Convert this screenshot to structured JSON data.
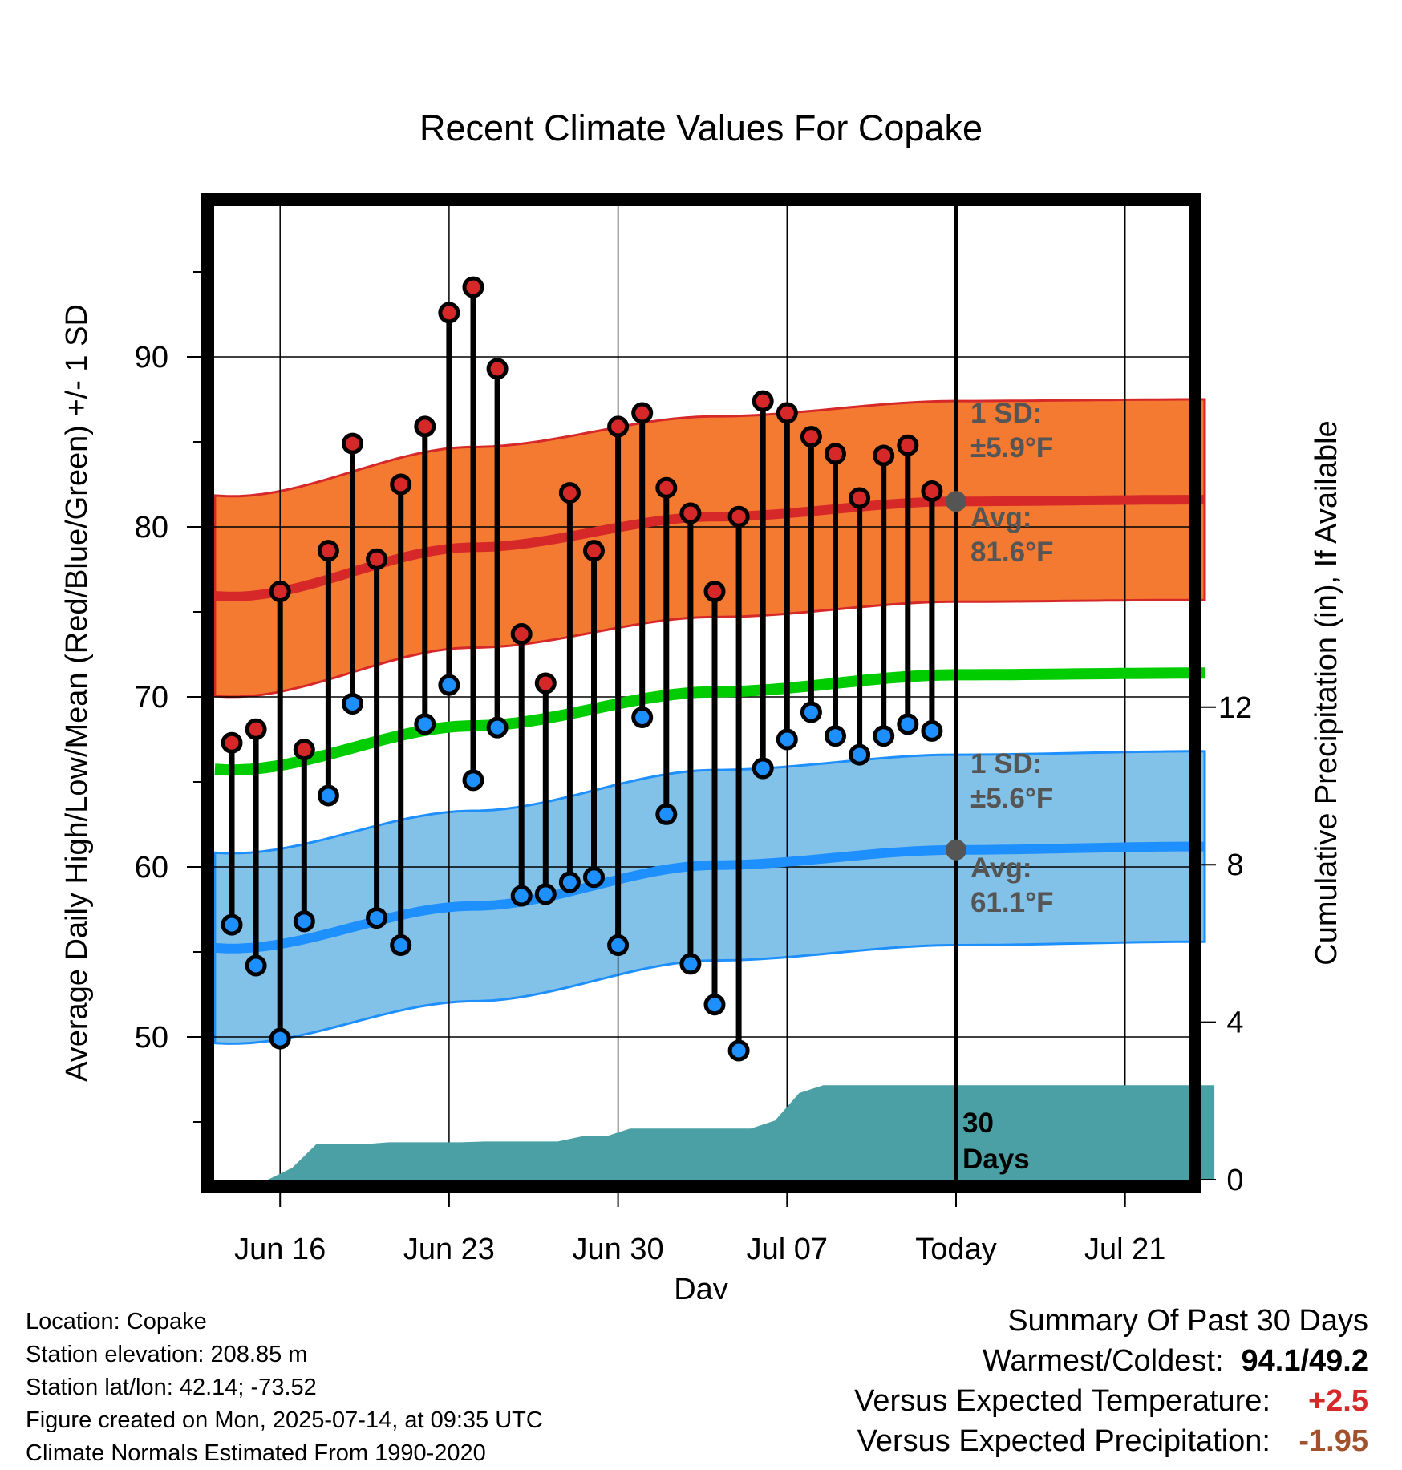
{
  "chart_data": {
    "type": "line",
    "title": "Recent Climate Values For Copake",
    "xlabel": "Day",
    "ylabel": "Average Daily High/Low/Mean (Red/Blue/Green) +/- 1 SD",
    "ylabel_right": "Cumulative Precipitation (in), If Available",
    "x_tick_labels": [
      "Jun 16",
      "Jun 23",
      "Jun 30",
      "Jul 07",
      "Today",
      "Jul 21"
    ],
    "y_ticks": [
      50,
      60,
      70,
      80,
      90
    ],
    "y2_ticks": [
      0,
      4,
      8,
      12
    ],
    "ylim": [
      40,
      98
    ],
    "y2lim": [
      0,
      26.4
    ],
    "grid": true,
    "daily_high": [
      67.3,
      68.1,
      76.2,
      66.9,
      78.6,
      84.9,
      78.1,
      82.5,
      85.9,
      92.6,
      94.1,
      89.3,
      73.7,
      70.8,
      82.0,
      78.6,
      85.9,
      86.7,
      82.3,
      80.8,
      76.2,
      80.6,
      87.4,
      86.7,
      85.3,
      84.3,
      81.7,
      84.2,
      84.8,
      82.1
    ],
    "daily_low": [
      56.6,
      54.2,
      49.9,
      56.8,
      64.2,
      69.6,
      57.0,
      55.4,
      68.4,
      70.7,
      65.1,
      68.2,
      58.3,
      58.4,
      59.1,
      59.4,
      55.4,
      68.8,
      63.1,
      54.3,
      51.9,
      49.2,
      65.8,
      67.5,
      69.1,
      67.7,
      66.6,
      67.7,
      68.4,
      68.0
    ],
    "normal_high": {
      "x": [
        "Jun 13",
        "Jun 23",
        "Jul 03",
        "Jul 13",
        "Jul 23"
      ],
      "values": [
        75.9,
        78.8,
        80.6,
        81.5,
        81.6
      ]
    },
    "normal_high_sd": 5.9,
    "normal_low": {
      "x": [
        "Jun 13",
        "Jun 23",
        "Jul 03",
        "Jul 13",
        "Jul 23"
      ],
      "values": [
        55.2,
        57.7,
        60.1,
        61.0,
        61.2
      ]
    },
    "normal_low_sd": 5.6,
    "normal_mean": {
      "x": [
        "Jun 13",
        "Jun 23",
        "Jul 03",
        "Jul 13",
        "Jul 23"
      ],
      "values": [
        65.7,
        68.3,
        70.3,
        71.3,
        71.4
      ]
    },
    "cumulative_precip": [
      0.0,
      0.0,
      0.3,
      0.9,
      0.9,
      0.9,
      0.95,
      0.95,
      0.95,
      0.95,
      0.97,
      0.97,
      0.97,
      0.97,
      1.1,
      1.1,
      1.3,
      1.3,
      1.3,
      1.3,
      1.3,
      1.3,
      1.5,
      2.2,
      2.4,
      2.4,
      2.4,
      2.4,
      2.4,
      2.4
    ],
    "annotations": {
      "high_sd_label": "1 SD:",
      "high_sd_value": "±5.9°F",
      "high_avg_label": "Avg:",
      "high_avg_value": "81.6°F",
      "low_sd_label": "1 SD:",
      "low_sd_value": "±5.6°F",
      "low_avg_label": "Avg:",
      "low_avg_value": "61.1°F",
      "window_line1": "30",
      "window_line2": "Days"
    },
    "colors": {
      "high_band": "#f37a30",
      "high_line": "#d62828",
      "low_band": "#83c2e8",
      "low_line": "#1e8fff",
      "mean_line": "#00cc00",
      "precip_fill": "#4aa0a4",
      "high_marker": "#d62828",
      "low_marker": "#1e8fff",
      "annotation_text": "#555555"
    }
  },
  "info": {
    "location": "Location: Copake",
    "elevation": "Station elevation: 208.85 m",
    "latlon": "Station lat/lon: 42.14; -73.52",
    "created": "Figure created on Mon, 2025-07-14, at 09:35 UTC",
    "normals": "Climate Normals Estimated From 1990-2020"
  },
  "summary": {
    "title": "Summary Of Past 30 Days",
    "warm_cold_label": "Warmest/Coldest:",
    "warm_cold_value": "94.1/49.2",
    "temp_label": "Versus Expected Temperature:",
    "temp_value": "+2.5",
    "temp_color": "#d62828",
    "precip_label": "Versus Expected Precipitation:",
    "precip_value": "-1.95",
    "precip_color": "#a0522d"
  }
}
